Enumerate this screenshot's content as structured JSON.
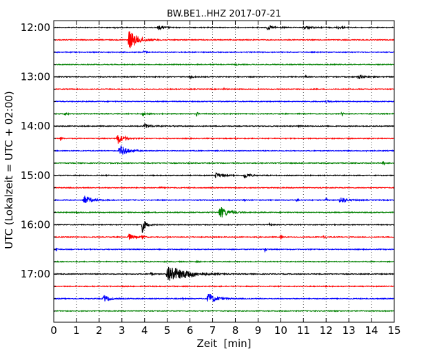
{
  "chart_data": {
    "type": "line",
    "title": "BW.BE1..HHZ 2017-07-21",
    "xlabel": "Zeit  [min]",
    "ylabel": "UTC (Lokalzeit = UTC + 02:00)",
    "xlim": [
      0,
      15
    ],
    "x_ticks": [
      "0",
      "1",
      "2",
      "3",
      "4",
      "5",
      "6",
      "7",
      "8",
      "9",
      "10",
      "11",
      "12",
      "13",
      "14",
      "15"
    ],
    "x_grid": "dotted, every minute",
    "y_ticks": [
      {
        "label": "12:00",
        "row": 0
      },
      {
        "label": "13:00",
        "row": 4
      },
      {
        "label": "14:00",
        "row": 8
      },
      {
        "label": "15:00",
        "row": 12
      },
      {
        "label": "16:00",
        "row": 16
      },
      {
        "label": "17:00",
        "row": 20
      }
    ],
    "row_interval_minutes": 15,
    "color_cycle": [
      "#000000",
      "#ff0000",
      "#0000ff",
      "#008000"
    ],
    "rows": [
      {
        "start": "12:00",
        "events": [
          {
            "t": 2.7,
            "a": 0.25,
            "d": 0.05
          },
          {
            "t": 4.6,
            "a": 0.3,
            "d": 0.25
          },
          {
            "t": 9.4,
            "a": 0.3,
            "d": 0.3
          },
          {
            "t": 11.0,
            "a": 0.2,
            "d": 0.4
          },
          {
            "t": 12.5,
            "a": 0.2,
            "d": 0.2
          }
        ]
      },
      {
        "start": "12:15",
        "events": [
          {
            "t": 3.3,
            "a": 1.6,
            "d": 0.35
          }
        ]
      },
      {
        "start": "12:30",
        "events": [
          {
            "t": 4.0,
            "a": 0.35,
            "d": 0.05
          }
        ]
      },
      {
        "start": "12:45",
        "events": [
          {
            "t": 8.0,
            "a": 0.2,
            "d": 0.05
          }
        ]
      },
      {
        "start": "13:00",
        "events": [
          {
            "t": 6.0,
            "a": 0.3,
            "d": 0.1
          },
          {
            "t": 11.1,
            "a": 0.25,
            "d": 0.05
          },
          {
            "t": 13.4,
            "a": 0.25,
            "d": 0.3
          }
        ]
      },
      {
        "start": "13:15",
        "events": [
          {
            "t": 7.5,
            "a": 0.1,
            "d": 0.1
          }
        ]
      },
      {
        "start": "13:30",
        "events": [
          {
            "t": 12.0,
            "a": 0.1,
            "d": 0.2
          }
        ]
      },
      {
        "start": "13:45",
        "events": [
          {
            "t": 0.5,
            "a": 0.25,
            "d": 0.1
          },
          {
            "t": 3.9,
            "a": 0.2,
            "d": 0.2
          },
          {
            "t": 6.3,
            "a": 0.35,
            "d": 0.05
          },
          {
            "t": 12.7,
            "a": 0.35,
            "d": 0.05
          }
        ]
      },
      {
        "start": "14:00",
        "events": [
          {
            "t": 4.0,
            "a": 0.35,
            "d": 0.25
          },
          {
            "t": 5.3,
            "a": 0.15,
            "d": 0.05
          },
          {
            "t": 10.8,
            "a": 0.15,
            "d": 0.05
          }
        ]
      },
      {
        "start": "14:15",
        "events": [
          {
            "t": 0.3,
            "a": 0.3,
            "d": 0.05
          },
          {
            "t": 2.8,
            "a": 0.9,
            "d": 0.2
          },
          {
            "t": 3.2,
            "a": 0.3,
            "d": 0.05
          },
          {
            "t": 8.0,
            "a": 0.15,
            "d": 0.05
          }
        ]
      },
      {
        "start": "14:30",
        "events": [
          {
            "t": 2.9,
            "a": 0.9,
            "d": 0.3
          },
          {
            "t": 13.8,
            "a": 0.15,
            "d": 0.05
          }
        ]
      },
      {
        "start": "14:45",
        "events": [
          {
            "t": 14.5,
            "a": 0.35,
            "d": 0.05
          }
        ]
      },
      {
        "start": "15:00",
        "events": [
          {
            "t": 7.1,
            "a": 0.45,
            "d": 0.25
          },
          {
            "t": 8.4,
            "a": 0.4,
            "d": 0.2
          }
        ]
      },
      {
        "start": "15:15",
        "events": [
          {
            "t": 4.7,
            "a": 0.1,
            "d": 0.1
          }
        ]
      },
      {
        "start": "15:30",
        "events": [
          {
            "t": 1.3,
            "a": 0.7,
            "d": 0.3
          },
          {
            "t": 8.4,
            "a": 0.2,
            "d": 0.05
          },
          {
            "t": 10.7,
            "a": 0.25,
            "d": 0.05
          },
          {
            "t": 12.0,
            "a": 0.25,
            "d": 0.05
          },
          {
            "t": 12.6,
            "a": 0.6,
            "d": 0.25
          }
        ]
      },
      {
        "start": "15:45",
        "events": [
          {
            "t": 7.3,
            "a": 1.0,
            "d": 0.3
          },
          {
            "t": 1.0,
            "a": 0.15,
            "d": 0.05
          }
        ]
      },
      {
        "start": "16:00",
        "events": [
          {
            "t": 3.9,
            "a": 1.1,
            "d": 0.15
          },
          {
            "t": 9.5,
            "a": 0.15,
            "d": 0.1
          }
        ]
      },
      {
        "start": "16:15",
        "events": [
          {
            "t": 3.3,
            "a": 0.5,
            "d": 0.2
          },
          {
            "t": 3.9,
            "a": 0.6,
            "d": 0.05
          },
          {
            "t": 10.0,
            "a": 0.3,
            "d": 0.05
          },
          {
            "t": 11.9,
            "a": 0.3,
            "d": 0.05
          }
        ]
      },
      {
        "start": "16:30",
        "events": [
          {
            "t": 0.1,
            "a": 0.4,
            "d": 0.05
          },
          {
            "t": 9.3,
            "a": 0.35,
            "d": 0.05
          }
        ]
      },
      {
        "start": "16:45",
        "events": [
          {
            "t": 6.3,
            "a": 0.15,
            "d": 0.05
          }
        ]
      },
      {
        "start": "17:00",
        "events": [
          {
            "t": 4.3,
            "a": 0.3,
            "d": 0.05
          },
          {
            "t": 5.0,
            "a": 1.5,
            "d": 0.6
          },
          {
            "t": 5.8,
            "a": 0.3,
            "d": 0.4
          }
        ]
      },
      {
        "start": "17:15",
        "events": []
      },
      {
        "start": "17:30",
        "events": [
          {
            "t": 2.2,
            "a": 0.6,
            "d": 0.2
          },
          {
            "t": 5.7,
            "a": 0.15,
            "d": 0.05
          },
          {
            "t": 6.8,
            "a": 0.9,
            "d": 0.3
          }
        ]
      },
      {
        "start": "17:45",
        "events": []
      }
    ]
  }
}
